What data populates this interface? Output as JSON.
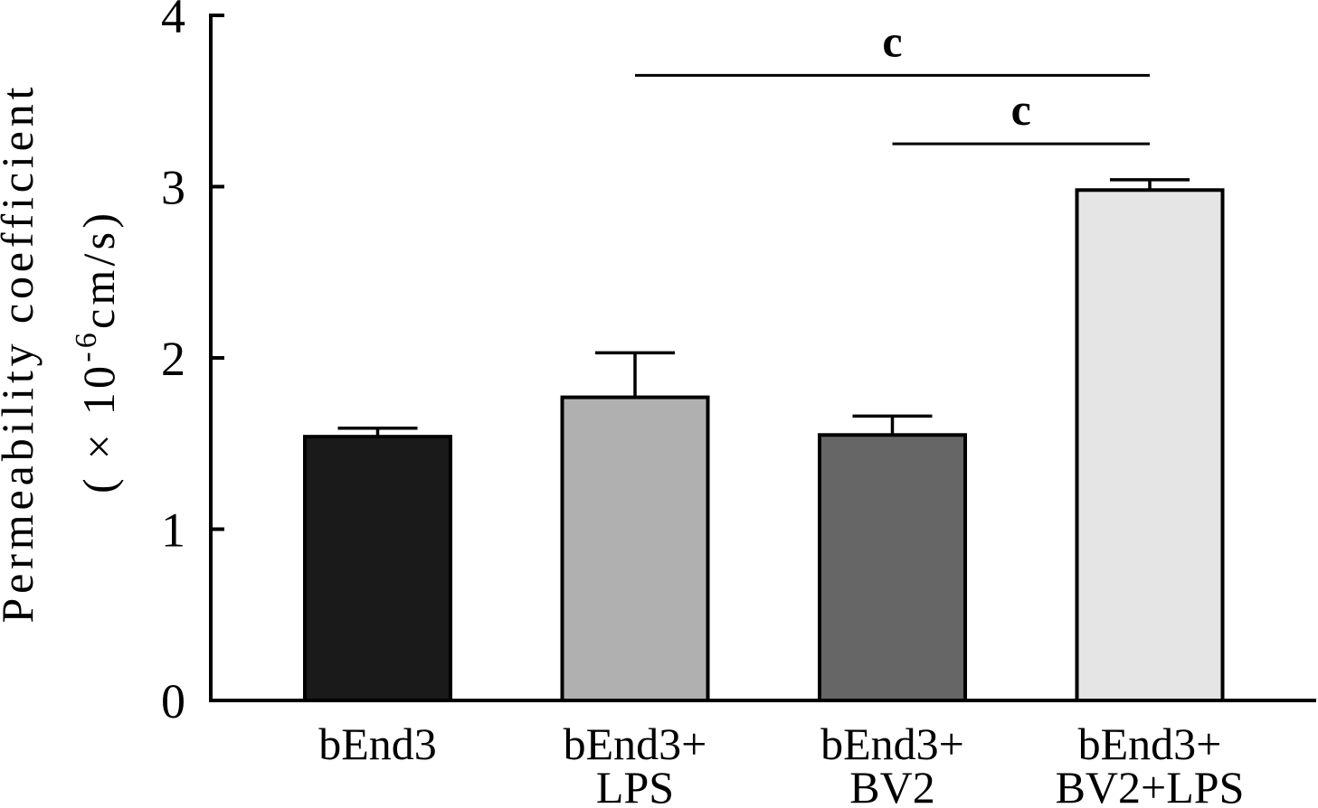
{
  "chart_data": {
    "type": "bar",
    "categories": [
      [
        "bEnd3"
      ],
      [
        "bEnd3+",
        "LPS"
      ],
      [
        "bEnd3+",
        "BV2"
      ],
      [
        "bEnd3+",
        "BV2+LPS"
      ]
    ],
    "values": [
      1.54,
      1.77,
      1.55,
      2.98
    ],
    "error_upper": [
      0.05,
      0.26,
      0.11,
      0.06
    ],
    "bar_colors": [
      "#1a1a1a",
      "#b0b0b0",
      "#666666",
      "#e5e5e5"
    ],
    "ylabel": {
      "text": "Permeability coefficient",
      "unit_prefix": "( × 10",
      "unit_exponent": "-6",
      "unit_suffix": "cm/s)"
    },
    "ylim": [
      0,
      4
    ],
    "yticks": [
      0,
      1,
      2,
      3,
      4
    ],
    "grid": false,
    "annotations": [
      {
        "from_category": 1,
        "to_category": 3,
        "label": "c"
      },
      {
        "from_category": 2,
        "to_category": 3,
        "label": "c"
      }
    ]
  }
}
